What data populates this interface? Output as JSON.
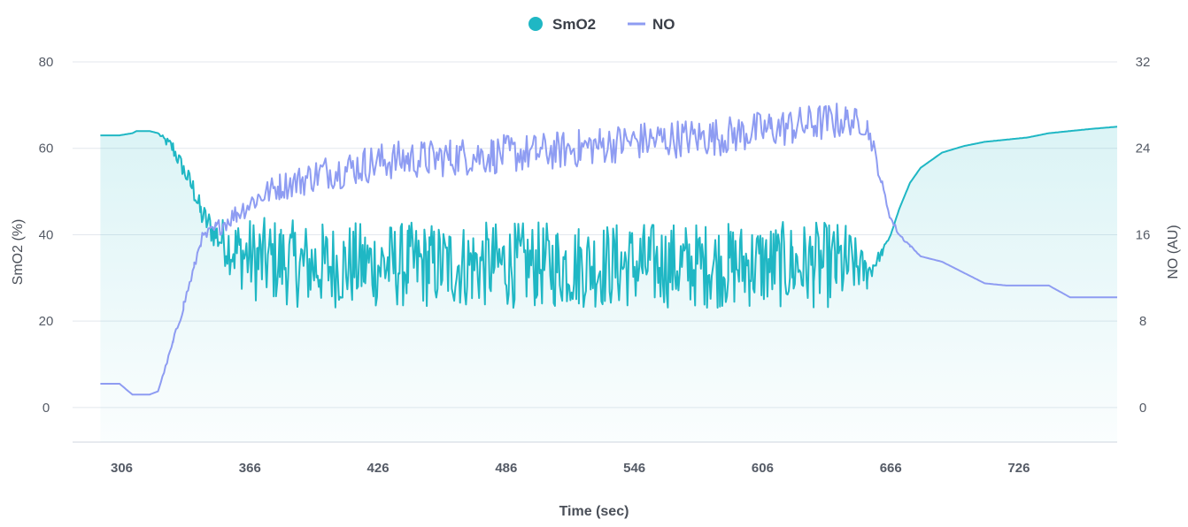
{
  "chart_data": {
    "type": "line",
    "x": [
      296,
      305,
      311,
      313,
      317,
      319,
      323,
      330,
      335,
      340,
      343,
      350,
      360,
      370,
      380,
      390,
      400,
      410,
      420,
      430,
      440,
      450,
      460,
      470,
      480,
      490,
      500,
      510,
      520,
      530,
      540,
      550,
      560,
      570,
      580,
      590,
      600,
      610,
      620,
      630,
      640,
      645,
      650,
      655,
      658,
      662,
      666,
      670,
      675,
      680,
      690,
      700,
      710,
      720,
      730,
      740,
      750,
      760,
      772
    ],
    "series": [
      {
        "name": "SmO2",
        "axis": "left",
        "color": "#1fb7c4",
        "values": [
          63,
          63,
          63.5,
          64,
          64,
          64,
          63.5,
          60,
          55,
          50,
          45,
          40,
          36,
          34,
          34,
          33,
          33,
          33,
          33,
          33,
          33,
          33,
          33,
          33,
          33,
          33,
          33,
          33,
          33,
          33,
          33,
          33,
          33,
          33,
          33,
          33,
          33,
          33,
          33,
          33,
          33,
          33,
          33,
          31,
          33,
          36,
          40,
          46,
          52,
          55.5,
          59,
          60.5,
          61.5,
          62,
          62.5,
          63.5,
          64,
          64.5,
          65
        ],
        "noise": [
          0,
          0,
          0,
          0,
          0,
          0,
          0,
          2,
          2,
          3,
          3,
          4,
          8,
          10,
          10,
          10,
          10,
          10,
          10,
          10,
          10,
          10,
          10,
          10,
          10,
          10,
          10,
          10,
          10,
          10,
          10,
          10,
          10,
          10,
          10,
          10,
          10,
          10,
          10,
          10,
          10,
          10,
          6,
          4,
          2,
          1,
          0,
          0,
          0,
          0,
          0,
          0,
          0,
          0,
          0,
          0,
          0,
          0,
          0
        ]
      },
      {
        "name": "NO",
        "axis": "right",
        "color": "#8e9cf2",
        "values": [
          2.2,
          2.2,
          1.2,
          1.2,
          1.2,
          1.2,
          1.5,
          6,
          9.5,
          13,
          15.5,
          16.5,
          18,
          19.5,
          20.5,
          21,
          21.8,
          22,
          22.5,
          22.8,
          23,
          23,
          23.2,
          23.3,
          23.4,
          23.5,
          23.6,
          23.8,
          24,
          24.3,
          24.5,
          24.7,
          24.8,
          25,
          25,
          25.2,
          25.5,
          25.8,
          26,
          26.3,
          26.5,
          26.6,
          26.5,
          26,
          24,
          20.5,
          17.5,
          16,
          15,
          14,
          13.5,
          12.5,
          11.5,
          11.3,
          11.3,
          11.3,
          10.2,
          10.2,
          10.2
        ],
        "noise": [
          0,
          0,
          0,
          0,
          0,
          0,
          0,
          0.3,
          0.5,
          0.5,
          0.6,
          0.8,
          1,
          1.2,
          1.3,
          1.5,
          1.6,
          1.7,
          1.8,
          1.8,
          1.8,
          1.8,
          1.8,
          1.8,
          1.8,
          1.8,
          1.8,
          1.8,
          1.8,
          1.8,
          1.8,
          1.8,
          1.8,
          1.8,
          1.8,
          1.8,
          1.8,
          1.8,
          1.8,
          1.8,
          1.8,
          1.5,
          1.2,
          1,
          0.8,
          0.5,
          0.3,
          0.2,
          0.1,
          0,
          0,
          0,
          0,
          0,
          0,
          0,
          0,
          0,
          0
        ]
      }
    ],
    "xticks": [
      "306",
      "366",
      "426",
      "486",
      "546",
      "606",
      "666",
      "726"
    ],
    "xtick_values": [
      306,
      366,
      426,
      486,
      546,
      606,
      666,
      726
    ],
    "xlim": [
      283,
      772
    ],
    "y_left_ticks": [
      "80",
      "60",
      "40",
      "20",
      "0"
    ],
    "y_left_tick_values": [
      80,
      60,
      40,
      20,
      0
    ],
    "y_left_lim": [
      -8,
      80
    ],
    "y_right_ticks": [
      "32",
      "24",
      "16",
      "8",
      "0"
    ],
    "y_right_tick_values": [
      32,
      24,
      16,
      8,
      0
    ],
    "y_right_lim": [
      -3.2,
      32
    ],
    "xlabel": "Time (sec)",
    "ylabel_left": "SmO2 (%)",
    "ylabel_right": "NO (AU)",
    "legend_position": "top-center",
    "grid": true
  },
  "legend": {
    "smo2_label": "SmO2",
    "no_label": "NO"
  }
}
